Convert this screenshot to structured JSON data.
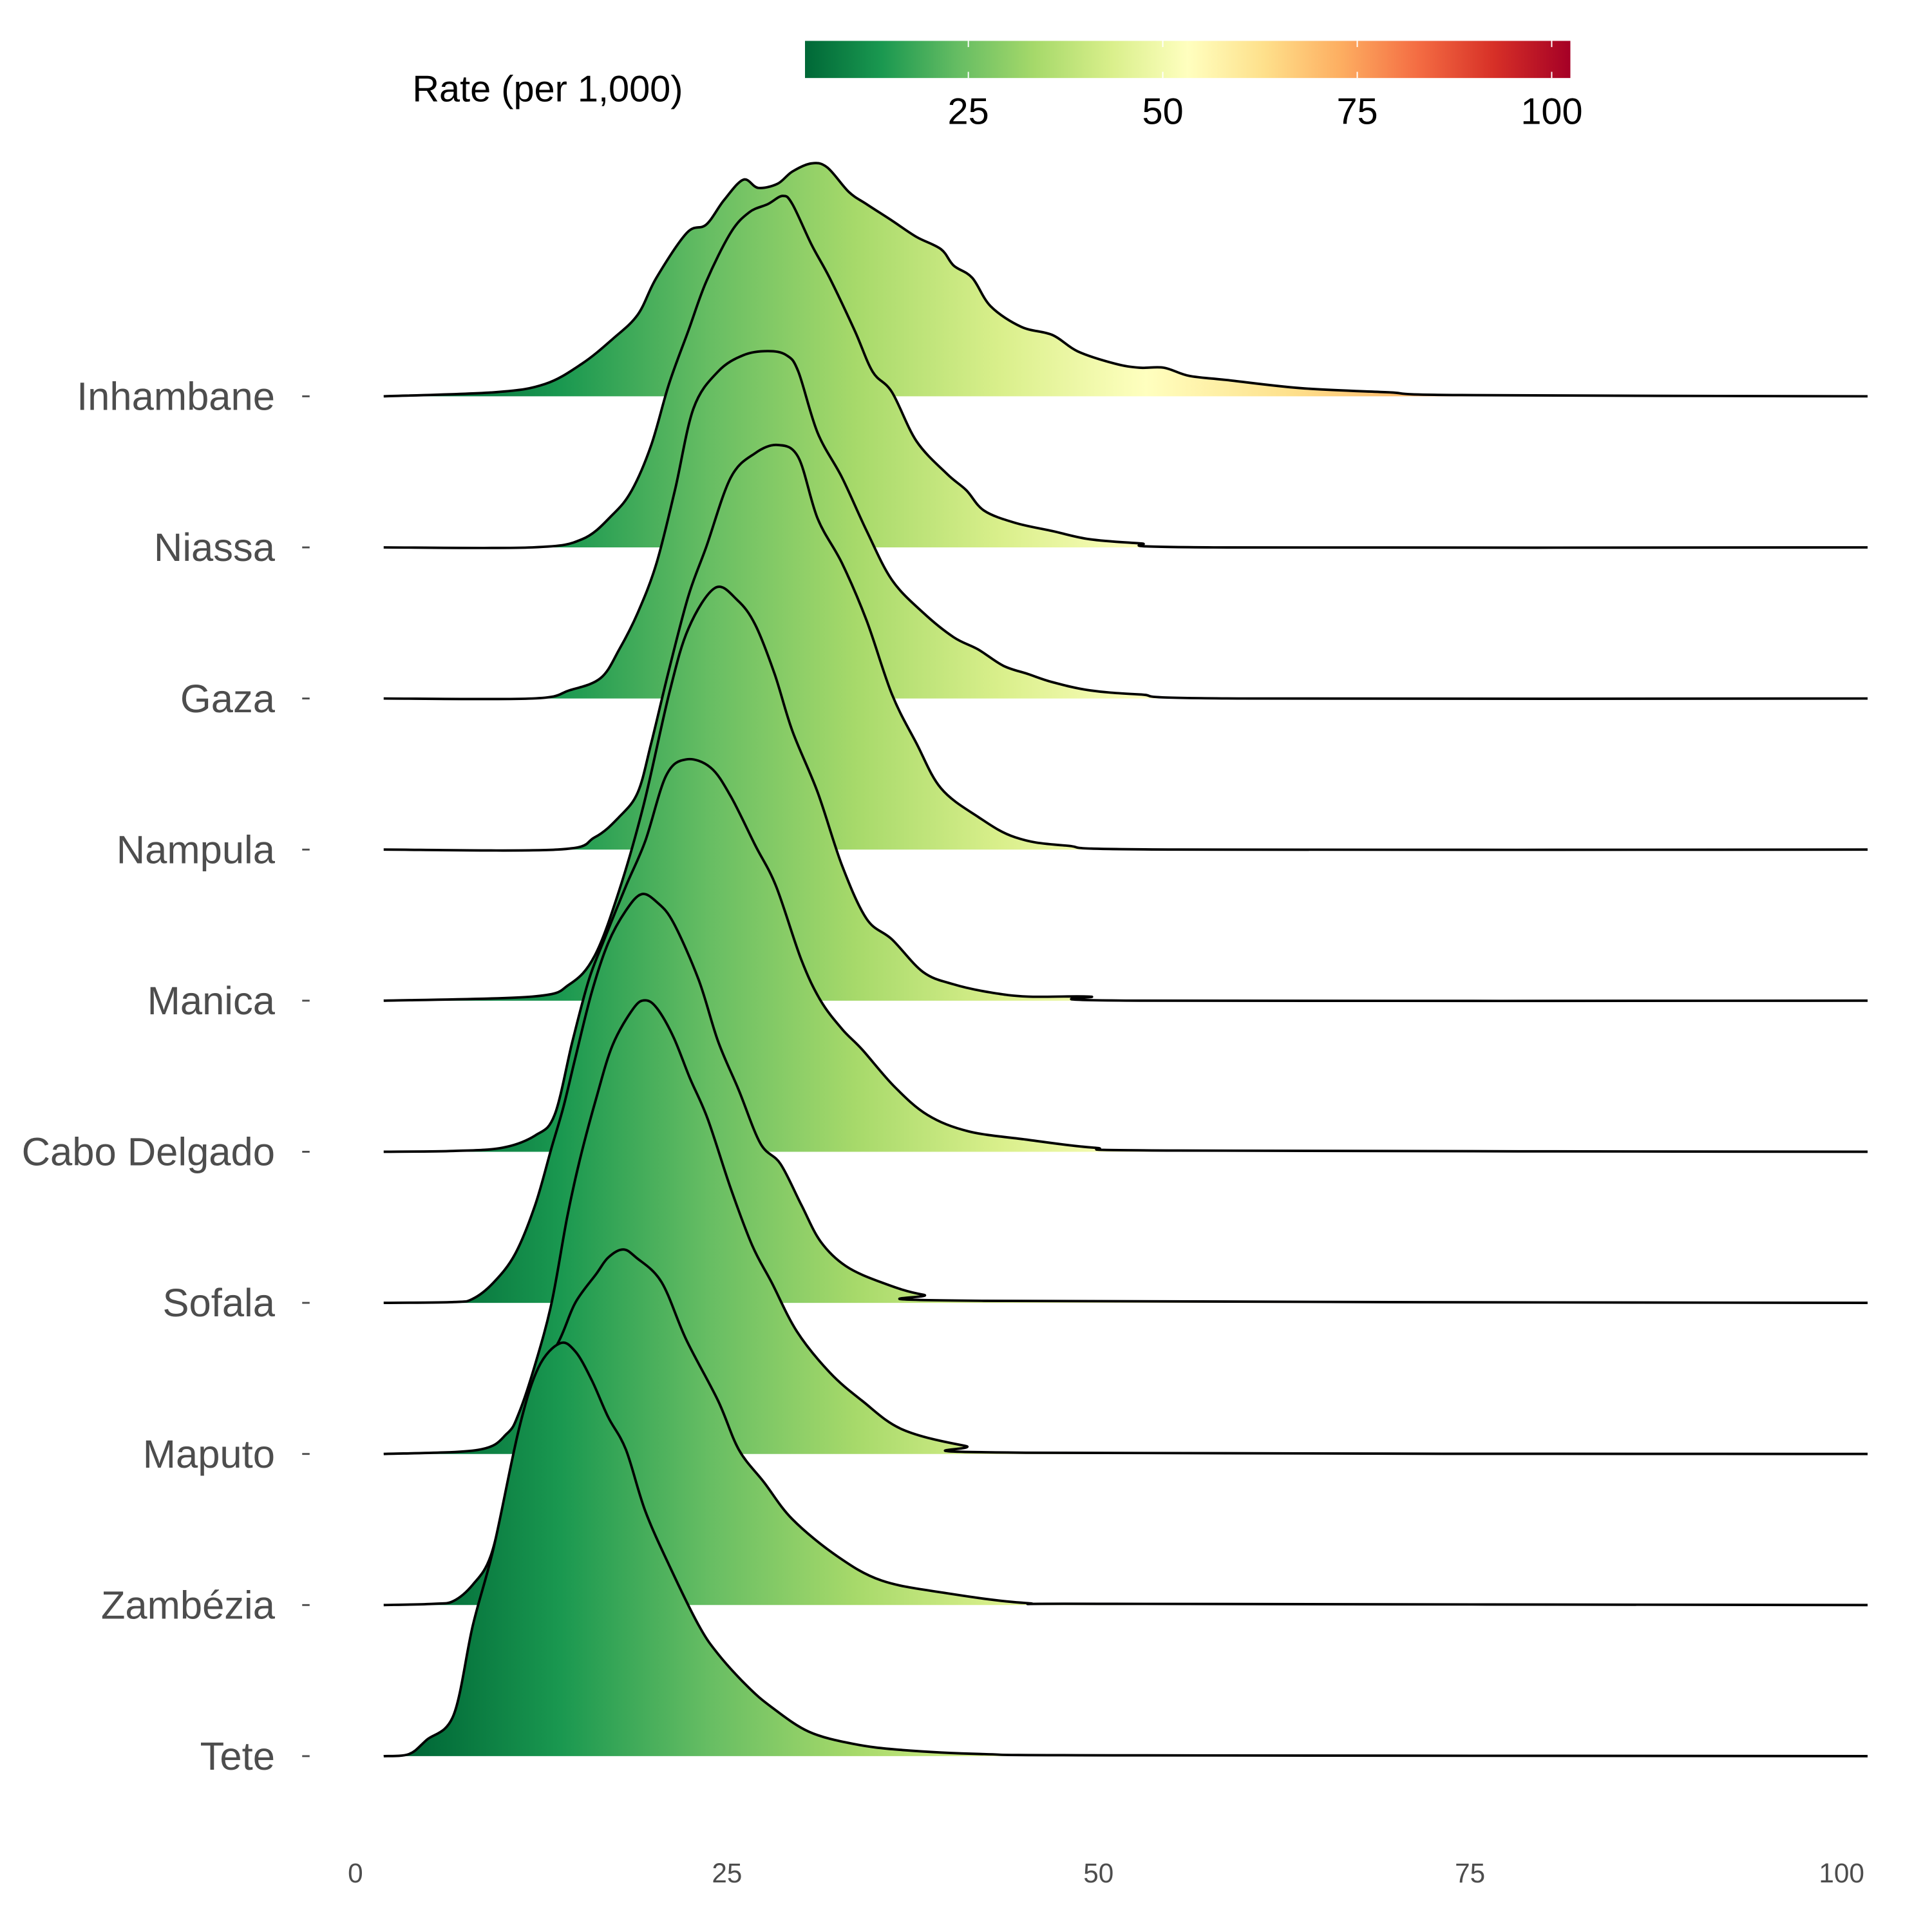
{
  "chart_data": {
    "type": "ridgeline",
    "xlabel": "",
    "ylabel": "",
    "xlim": [
      0,
      100
    ],
    "x_ticks": [
      "0",
      "25",
      "50",
      "75",
      "100"
    ],
    "x_tick_values": [
      0,
      25,
      50,
      75,
      100
    ],
    "legend": {
      "title": "Rate (per 1,000)",
      "placement": "top",
      "range": [
        4,
        102.4
      ],
      "ticks": [
        "25",
        "50",
        "75",
        "100"
      ],
      "tick_values": [
        25,
        50,
        75,
        100
      ],
      "palette": [
        "#006837",
        "#1a9850",
        "#66bd63",
        "#a6d96a",
        "#d9ef8b",
        "#ffffbf",
        "#fee08b",
        "#fdae61",
        "#f46d43",
        "#d73027",
        "#a50026"
      ]
    },
    "series": [
      {
        "name": "Inhambane",
        "density": [
          [
            1.9,
            0
          ],
          [
            9.4,
            0.01
          ],
          [
            12.75,
            0.03
          ],
          [
            15.25,
            0.08
          ],
          [
            17.3,
            0.14
          ],
          [
            19,
            0.2
          ],
          [
            20.25,
            0.29
          ],
          [
            22.3,
            0.4
          ],
          [
            23.6,
            0.42
          ],
          [
            24.8,
            0.48
          ],
          [
            26.1,
            0.53
          ],
          [
            27.1,
            0.51
          ],
          [
            28.4,
            0.52
          ],
          [
            29.4,
            0.55
          ],
          [
            30.7,
            0.57
          ],
          [
            31.75,
            0.56
          ],
          [
            33.2,
            0.5
          ],
          [
            34.4,
            0.47
          ],
          [
            36.1,
            0.43
          ],
          [
            37.75,
            0.39
          ],
          [
            39.4,
            0.36
          ],
          [
            40.25,
            0.32
          ],
          [
            41.5,
            0.29
          ],
          [
            42.75,
            0.22
          ],
          [
            44.8,
            0.17
          ],
          [
            46.9,
            0.15
          ],
          [
            48.6,
            0.11
          ],
          [
            51.1,
            0.08
          ],
          [
            52.75,
            0.07
          ],
          [
            54.4,
            0.07
          ],
          [
            56.1,
            0.05
          ],
          [
            58.6,
            0.04
          ],
          [
            63.6,
            0.02
          ],
          [
            69.4,
            0.01
          ],
          [
            74.4,
            0.003
          ],
          [
            101.75,
            0
          ]
        ]
      },
      {
        "name": "Niassa",
        "density": [
          [
            1.9,
            0
          ],
          [
            11.9,
            0
          ],
          [
            15.25,
            0.02
          ],
          [
            17.3,
            0.08
          ],
          [
            18.6,
            0.14
          ],
          [
            19.9,
            0.25
          ],
          [
            21.1,
            0.4
          ],
          [
            22.4,
            0.53
          ],
          [
            23.6,
            0.65
          ],
          [
            25.25,
            0.77
          ],
          [
            26.5,
            0.82
          ],
          [
            27.75,
            0.84
          ],
          [
            28.75,
            0.86
          ],
          [
            29.4,
            0.84
          ],
          [
            30.7,
            0.74
          ],
          [
            31.9,
            0.66
          ],
          [
            33.6,
            0.53
          ],
          [
            34.8,
            0.43
          ],
          [
            36.1,
            0.38
          ],
          [
            37.75,
            0.26
          ],
          [
            39.8,
            0.18
          ],
          [
            41.1,
            0.14
          ],
          [
            42.3,
            0.09
          ],
          [
            44.4,
            0.06
          ],
          [
            46.9,
            0.04
          ],
          [
            49.4,
            0.02
          ],
          [
            52.75,
            0.01
          ],
          [
            57.75,
            0
          ],
          [
            101.75,
            0
          ]
        ]
      },
      {
        "name": "Gaza",
        "density": [
          [
            1.9,
            0
          ],
          [
            11.9,
            0
          ],
          [
            14.4,
            0.02
          ],
          [
            16.5,
            0.05
          ],
          [
            17.75,
            0.12
          ],
          [
            19,
            0.21
          ],
          [
            20.25,
            0.33
          ],
          [
            21.5,
            0.51
          ],
          [
            22.75,
            0.71
          ],
          [
            24.4,
            0.8
          ],
          [
            26.1,
            0.84
          ],
          [
            27.75,
            0.85
          ],
          [
            29,
            0.84
          ],
          [
            29.8,
            0.8
          ],
          [
            31.1,
            0.65
          ],
          [
            32.75,
            0.54
          ],
          [
            34.4,
            0.41
          ],
          [
            36.1,
            0.29
          ],
          [
            38.2,
            0.21
          ],
          [
            40.25,
            0.15
          ],
          [
            41.9,
            0.12
          ],
          [
            43.6,
            0.08
          ],
          [
            45.25,
            0.06
          ],
          [
            46.9,
            0.04
          ],
          [
            49.4,
            0.02
          ],
          [
            52.75,
            0.01
          ],
          [
            59.4,
            0
          ],
          [
            101.75,
            0
          ]
        ]
      },
      {
        "name": "Nampula",
        "density": [
          [
            1.9,
            0
          ],
          [
            13.6,
            0
          ],
          [
            16.1,
            0.03
          ],
          [
            17.75,
            0.08
          ],
          [
            19,
            0.14
          ],
          [
            19.9,
            0.26
          ],
          [
            21.1,
            0.44
          ],
          [
            22.4,
            0.62
          ],
          [
            23.6,
            0.74
          ],
          [
            25.25,
            0.91
          ],
          [
            26.9,
            0.97
          ],
          [
            28.4,
            0.99
          ],
          [
            29.8,
            0.96
          ],
          [
            31.1,
            0.81
          ],
          [
            32.75,
            0.7
          ],
          [
            34.4,
            0.56
          ],
          [
            36.1,
            0.38
          ],
          [
            37.75,
            0.26
          ],
          [
            39.4,
            0.15
          ],
          [
            41.9,
            0.08
          ],
          [
            44.4,
            0.03
          ],
          [
            47.75,
            0.01
          ],
          [
            55.25,
            0
          ],
          [
            101.75,
            0
          ]
        ]
      },
      {
        "name": "Manica",
        "density": [
          [
            1.9,
            0
          ],
          [
            11.9,
            0.01
          ],
          [
            14.4,
            0.04
          ],
          [
            16.1,
            0.11
          ],
          [
            17.75,
            0.27
          ],
          [
            19.4,
            0.48
          ],
          [
            21.1,
            0.75
          ],
          [
            22.4,
            0.91
          ],
          [
            24.2,
            1.01
          ],
          [
            25.7,
            0.98
          ],
          [
            26.9,
            0.92
          ],
          [
            28.2,
            0.8
          ],
          [
            29.4,
            0.66
          ],
          [
            31.1,
            0.51
          ],
          [
            32.75,
            0.33
          ],
          [
            34.4,
            0.2
          ],
          [
            36.1,
            0.15
          ],
          [
            38.2,
            0.07
          ],
          [
            40.25,
            0.04
          ],
          [
            42.75,
            0.02
          ],
          [
            45.25,
            0.01
          ],
          [
            49.4,
            0.01
          ],
          [
            52.75,
            0
          ],
          [
            101.75,
            0
          ]
        ]
      },
      {
        "name": "Cabo Delgado",
        "density": [
          [
            1.9,
            0
          ],
          [
            6.6,
            0.002
          ],
          [
            9.9,
            0.01
          ],
          [
            12.1,
            0.04
          ],
          [
            13.4,
            0.09
          ],
          [
            14.6,
            0.27
          ],
          [
            15.7,
            0.42
          ],
          [
            16.75,
            0.52
          ],
          [
            18.2,
            0.65
          ],
          [
            19.5,
            0.76
          ],
          [
            20.9,
            0.92
          ],
          [
            22.25,
            0.96
          ],
          [
            23.9,
            0.94
          ],
          [
            25.25,
            0.87
          ],
          [
            26.9,
            0.75
          ],
          [
            28.3,
            0.65
          ],
          [
            30,
            0.47
          ],
          [
            31.3,
            0.37
          ],
          [
            32.75,
            0.3
          ],
          [
            34.1,
            0.25
          ],
          [
            36.25,
            0.16
          ],
          [
            38.5,
            0.09
          ],
          [
            41.25,
            0.05
          ],
          [
            45.1,
            0.03
          ],
          [
            49.7,
            0.01
          ],
          [
            55.25,
            0.003
          ],
          [
            101.75,
            0
          ]
        ]
      },
      {
        "name": "Sofala",
        "density": [
          [
            1.9,
            0
          ],
          [
            6.6,
            0.002
          ],
          [
            7.9,
            0.01
          ],
          [
            9.3,
            0.05
          ],
          [
            10.75,
            0.12
          ],
          [
            12.1,
            0.24
          ],
          [
            13.2,
            0.38
          ],
          [
            14,
            0.48
          ],
          [
            14.8,
            0.6
          ],
          [
            15.9,
            0.76
          ],
          [
            17,
            0.88
          ],
          [
            18.2,
            0.96
          ],
          [
            19.25,
            1.0
          ],
          [
            20.3,
            0.98
          ],
          [
            21.4,
            0.93
          ],
          [
            23.1,
            0.79
          ],
          [
            24.4,
            0.64
          ],
          [
            25.8,
            0.52
          ],
          [
            27.25,
            0.39
          ],
          [
            28.6,
            0.34
          ],
          [
            30,
            0.24
          ],
          [
            31.3,
            0.15
          ],
          [
            33,
            0.09
          ],
          [
            35.4,
            0.05
          ],
          [
            38.2,
            0.02
          ],
          [
            42.3,
            0.005
          ],
          [
            101.75,
            0
          ]
        ]
      },
      {
        "name": "Maputo",
        "density": [
          [
            1.9,
            0
          ],
          [
            8.25,
            0.01
          ],
          [
            10.2,
            0.05
          ],
          [
            11,
            0.1
          ],
          [
            12.1,
            0.22
          ],
          [
            13.2,
            0.37
          ],
          [
            14.25,
            0.58
          ],
          [
            15.1,
            0.72
          ],
          [
            16.2,
            0.87
          ],
          [
            17.3,
            1.0
          ],
          [
            18.7,
            1.09
          ],
          [
            19.5,
            1.11
          ],
          [
            20.3,
            1.09
          ],
          [
            21.4,
            1.02
          ],
          [
            22.5,
            0.92
          ],
          [
            23.7,
            0.82
          ],
          [
            25.25,
            0.65
          ],
          [
            26.7,
            0.51
          ],
          [
            28,
            0.42
          ],
          [
            29.7,
            0.3
          ],
          [
            31.9,
            0.2
          ],
          [
            34.1,
            0.13
          ],
          [
            36.8,
            0.06
          ],
          [
            41,
            0.02
          ],
          [
            45.1,
            0.003
          ],
          [
            101.75,
            0
          ]
        ]
      },
      {
        "name": "Zambézia",
        "density": [
          [
            1.9,
            0
          ],
          [
            5.25,
            0.003
          ],
          [
            6.6,
            0.01
          ],
          [
            7.9,
            0.05
          ],
          [
            9.1,
            0.12
          ],
          [
            10.25,
            0.29
          ],
          [
            11.9,
            0.52
          ],
          [
            13.75,
            0.65
          ],
          [
            14.8,
            0.74
          ],
          [
            16.2,
            0.81
          ],
          [
            17,
            0.85
          ],
          [
            18,
            0.87
          ],
          [
            18.9,
            0.85
          ],
          [
            20.6,
            0.79
          ],
          [
            22.25,
            0.65
          ],
          [
            24.4,
            0.5
          ],
          [
            25.8,
            0.38
          ],
          [
            27.5,
            0.3
          ],
          [
            29.4,
            0.21
          ],
          [
            32.4,
            0.12
          ],
          [
            35.4,
            0.06
          ],
          [
            39.6,
            0.03
          ],
          [
            45.1,
            0.005
          ],
          [
            51,
            0.003
          ],
          [
            101.75,
            0
          ]
        ]
      },
      {
        "name": "Tete",
        "density": [
          [
            1.9,
            0
          ],
          [
            3.6,
            0.005
          ],
          [
            4.8,
            0.04
          ],
          [
            6.6,
            0.1
          ],
          [
            7.9,
            0.32
          ],
          [
            9.3,
            0.51
          ],
          [
            11,
            0.8
          ],
          [
            12.3,
            0.95
          ],
          [
            13.75,
            1.01
          ],
          [
            14.8,
            0.99
          ],
          [
            15.9,
            0.92
          ],
          [
            17,
            0.83
          ],
          [
            18.2,
            0.75
          ],
          [
            19.5,
            0.6
          ],
          [
            21.2,
            0.46
          ],
          [
            23.1,
            0.32
          ],
          [
            24.4,
            0.25
          ],
          [
            26.4,
            0.17
          ],
          [
            28,
            0.12
          ],
          [
            30.5,
            0.06
          ],
          [
            33.5,
            0.03
          ],
          [
            36.8,
            0.015
          ],
          [
            42.3,
            0.005
          ],
          [
            51,
            0.002
          ],
          [
            101.75,
            0
          ]
        ]
      }
    ]
  }
}
